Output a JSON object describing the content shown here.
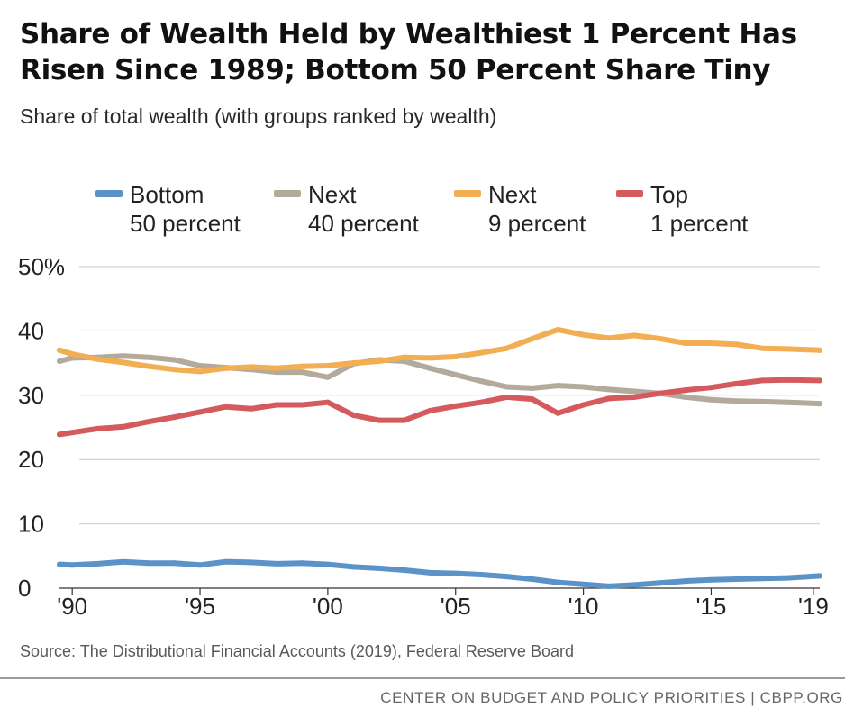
{
  "chart_data": {
    "type": "line",
    "title": "Share of Wealth Held by Wealthiest 1 Percent Has Risen Since 1989; Bottom 50 Percent Share Tiny",
    "subtitle": "Share of total wealth (with groups ranked by wealth)",
    "ylim": [
      0,
      50
    ],
    "xlim": [
      1989.5,
      2019.25
    ],
    "yticks": [
      {
        "value": 50,
        "label": "50%"
      },
      {
        "value": 40,
        "label": "40"
      },
      {
        "value": 30,
        "label": "30"
      },
      {
        "value": 20,
        "label": "20"
      },
      {
        "value": 10,
        "label": "10"
      },
      {
        "value": 0,
        "label": "0"
      }
    ],
    "xticks": [
      {
        "value": 1990,
        "label": "'90"
      },
      {
        "value": 1995,
        "label": "'95"
      },
      {
        "value": 2000,
        "label": "'00"
      },
      {
        "value": 2005,
        "label": "'05"
      },
      {
        "value": 2010,
        "label": "'10"
      },
      {
        "value": 2015,
        "label": "'15"
      },
      {
        "value": 2019,
        "label": "'19"
      }
    ],
    "grid": "horizontal",
    "legend_position": "top",
    "series": [
      {
        "name": "Bottom\n50 percent",
        "color": "#5b93c8",
        "x": [
          1989.5,
          1990,
          1991,
          1992,
          1993,
          1994,
          1995,
          1996,
          1997,
          1998,
          1999,
          2000,
          2001,
          2002,
          2003,
          2004,
          2005,
          2006,
          2007,
          2008,
          2009,
          2010,
          2011,
          2012,
          2013,
          2014,
          2015,
          2016,
          2017,
          2018,
          2019.25
        ],
        "values": [
          3.7,
          3.6,
          3.8,
          4.1,
          3.9,
          3.9,
          3.6,
          4.1,
          4.0,
          3.8,
          3.9,
          3.7,
          3.3,
          3.1,
          2.8,
          2.4,
          2.3,
          2.1,
          1.8,
          1.4,
          0.9,
          0.6,
          0.3,
          0.5,
          0.8,
          1.1,
          1.3,
          1.4,
          1.5,
          1.6,
          1.9
        ]
      },
      {
        "name": "Next\n40 percent",
        "color": "#b3aa9c",
        "x": [
          1989.5,
          1990,
          1991,
          1992,
          1993,
          1994,
          1995,
          1996,
          1997,
          1998,
          1999,
          2000,
          2001,
          2002,
          2003,
          2004,
          2005,
          2006,
          2007,
          2008,
          2009,
          2010,
          2011,
          2012,
          2013,
          2014,
          2015,
          2016,
          2017,
          2018,
          2019.25
        ],
        "values": [
          35.3,
          35.8,
          35.9,
          36.1,
          35.9,
          35.5,
          34.6,
          34.3,
          34.0,
          33.6,
          33.6,
          32.8,
          34.9,
          35.5,
          35.3,
          34.2,
          33.2,
          32.2,
          31.3,
          31.1,
          31.5,
          31.3,
          30.9,
          30.6,
          30.3,
          29.7,
          29.3,
          29.1,
          29.0,
          28.9,
          28.7
        ]
      },
      {
        "name": "Next\n9 percent",
        "color": "#f2ae52",
        "x": [
          1989.5,
          1990,
          1991,
          1992,
          1993,
          1994,
          1995,
          1996,
          1997,
          1998,
          1999,
          2000,
          2001,
          2002,
          2003,
          2004,
          2005,
          2006,
          2007,
          2008,
          2009,
          2010,
          2011,
          2012,
          2013,
          2014,
          2015,
          2016,
          2017,
          2018,
          2019.25
        ],
        "values": [
          37.0,
          36.4,
          35.6,
          35.1,
          34.5,
          34.0,
          33.7,
          34.2,
          34.4,
          34.2,
          34.5,
          34.6,
          35.0,
          35.3,
          35.9,
          35.8,
          36.0,
          36.6,
          37.3,
          38.8,
          40.2,
          39.4,
          38.9,
          39.3,
          38.8,
          38.1,
          38.1,
          37.9,
          37.3,
          37.2,
          37.0
        ]
      },
      {
        "name": "Top\n1 percent",
        "color": "#d55a5e",
        "x": [
          1989.5,
          1990,
          1991,
          1992,
          1993,
          1994,
          1995,
          1996,
          1997,
          1998,
          1999,
          2000,
          2001,
          2002,
          2003,
          2004,
          2005,
          2006,
          2007,
          2008,
          2009,
          2010,
          2011,
          2012,
          2013,
          2014,
          2015,
          2016,
          2017,
          2018,
          2019.25
        ],
        "values": [
          23.9,
          24.2,
          24.8,
          25.1,
          25.9,
          26.6,
          27.4,
          28.2,
          27.9,
          28.5,
          28.5,
          28.9,
          26.9,
          26.1,
          26.1,
          27.6,
          28.3,
          28.9,
          29.7,
          29.4,
          27.2,
          28.5,
          29.5,
          29.7,
          30.3,
          30.8,
          31.2,
          31.8,
          32.3,
          32.4,
          32.3
        ]
      }
    ],
    "source": "Source: The Distributional Financial Accounts (2019), Federal Reserve Board"
  },
  "footer": "CENTER ON BUDGET AND POLICY PRIORITIES | CBPP.ORG"
}
